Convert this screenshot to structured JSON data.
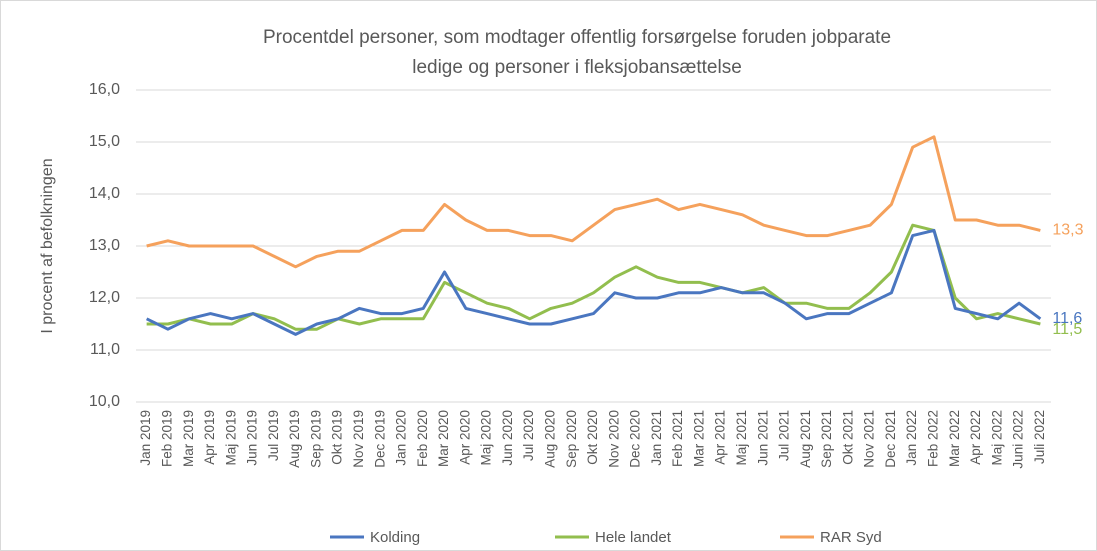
{
  "chart_data": {
    "type": "line",
    "title": [
      "Procentdel personer, som modtager offentlig forsørgelse foruden jobparate",
      "ledige og personer i fleksjobansættelse"
    ],
    "y_label": "I procent af befolkningen",
    "categories": [
      "Jan 2019",
      "Feb 2019",
      "Mar 2019",
      "Apr 2019",
      "Maj 2019",
      "Jun 2019",
      "Jul 2019",
      "Aug 2019",
      "Sep 2019",
      "Okt 2019",
      "Nov 2019",
      "Dec 2019",
      "Jan 2020",
      "Feb 2020",
      "Mar 2020",
      "Apr 2020",
      "Maj 2020",
      "Jun 2020",
      "Jul 2020",
      "Aug 2020",
      "Sep 2020",
      "Okt 2020",
      "Nov 2020",
      "Dec 2020",
      "Jan 2021",
      "Feb 2021",
      "Mar 2021",
      "Apr 2021",
      "Maj 2021",
      "Jun 2021",
      "Jul 2021",
      "Aug 2021",
      "Sep 2021",
      "Okt 2021",
      "Nov 2021",
      "Dec 2021",
      "Jan 2022",
      "Feb 2022",
      "Mar 2022",
      "Apr 2022",
      "Maj 2022",
      "Juni 2022",
      "Juli 2022"
    ],
    "series": [
      {
        "name": "Kolding",
        "color": "#4a76c0",
        "values": [
          11.6,
          11.4,
          11.6,
          11.7,
          11.6,
          11.7,
          11.5,
          11.3,
          11.5,
          11.6,
          11.8,
          11.7,
          11.7,
          11.8,
          12.5,
          11.8,
          11.7,
          11.6,
          11.5,
          11.5,
          11.6,
          11.7,
          12.1,
          12.0,
          12.0,
          12.1,
          12.1,
          12.2,
          12.1,
          12.1,
          11.9,
          11.6,
          11.7,
          11.7,
          11.9,
          12.1,
          13.2,
          13.3,
          11.8,
          11.7,
          11.6,
          11.9,
          11.6
        ],
        "value_labels": [
          null,
          null,
          null,
          null,
          null,
          null,
          null,
          null,
          null,
          null,
          null,
          null,
          null,
          null,
          null,
          null,
          null,
          null,
          null,
          null,
          null,
          null,
          null,
          null,
          null,
          null,
          null,
          null,
          null,
          null,
          null,
          null,
          null,
          null,
          null,
          null,
          null,
          null,
          null,
          null,
          null,
          null,
          "11,6"
        ]
      },
      {
        "name": "Hele landet",
        "color": "#92be4e",
        "values": [
          11.5,
          11.5,
          11.6,
          11.5,
          11.5,
          11.7,
          11.6,
          11.4,
          11.4,
          11.6,
          11.5,
          11.6,
          11.6,
          11.6,
          12.3,
          12.1,
          11.9,
          11.8,
          11.6,
          11.8,
          11.9,
          12.1,
          12.4,
          12.6,
          12.4,
          12.3,
          12.3,
          12.2,
          12.1,
          12.2,
          11.9,
          11.9,
          11.8,
          11.8,
          12.1,
          12.5,
          13.4,
          13.3,
          12.0,
          11.6,
          11.7,
          11.6,
          11.5
        ],
        "value_labels": [
          null,
          null,
          null,
          null,
          null,
          null,
          null,
          null,
          null,
          null,
          null,
          null,
          null,
          null,
          null,
          null,
          null,
          null,
          null,
          null,
          null,
          null,
          null,
          null,
          null,
          null,
          null,
          null,
          null,
          null,
          null,
          null,
          null,
          null,
          null,
          null,
          null,
          null,
          null,
          null,
          null,
          null,
          "11,5"
        ]
      },
      {
        "name": "RAR Syd",
        "color": "#f5a15c",
        "values": [
          13.0,
          13.1,
          13.0,
          13.0,
          13.0,
          13.0,
          12.8,
          12.6,
          12.8,
          12.9,
          12.9,
          13.1,
          13.3,
          13.3,
          13.8,
          13.5,
          13.3,
          13.3,
          13.2,
          13.2,
          13.1,
          13.4,
          13.7,
          13.8,
          13.9,
          13.7,
          13.8,
          13.7,
          13.6,
          13.4,
          13.3,
          13.2,
          13.2,
          13.3,
          13.4,
          13.8,
          14.9,
          15.1,
          13.5,
          13.5,
          13.4,
          13.4,
          13.3
        ],
        "value_labels": [
          null,
          null,
          null,
          null,
          null,
          null,
          null,
          null,
          null,
          null,
          null,
          null,
          null,
          null,
          null,
          null,
          null,
          null,
          null,
          null,
          null,
          null,
          null,
          null,
          null,
          null,
          null,
          null,
          null,
          null,
          null,
          null,
          null,
          null,
          null,
          null,
          null,
          null,
          null,
          null,
          null,
          null,
          "13,3"
        ]
      }
    ],
    "ylim": [
      10,
      16
    ],
    "yticks": [
      {
        "value": 10,
        "label": "10,0"
      },
      {
        "value": 11,
        "label": "11,0"
      },
      {
        "value": 12,
        "label": "12,0"
      },
      {
        "value": 13,
        "label": "13,0"
      },
      {
        "value": 14,
        "label": "14,0"
      },
      {
        "value": 15,
        "label": "15,0"
      },
      {
        "value": 16,
        "label": "16,0"
      }
    ],
    "grid": true,
    "legend": "bottom"
  }
}
